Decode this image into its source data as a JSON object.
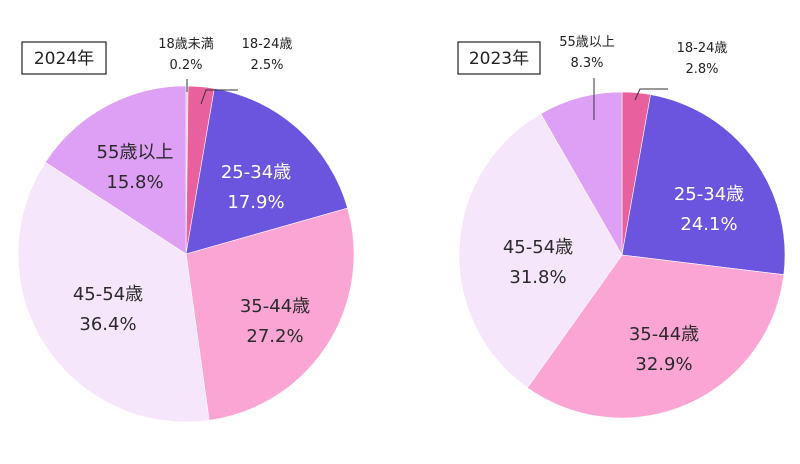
{
  "chart_data": [
    {
      "type": "pie",
      "title": "2024年",
      "slices": [
        {
          "label": "18歳未満",
          "value": 0.2,
          "display": "0.2%",
          "color": "#f0b8cf"
        },
        {
          "label": "18-24歳",
          "value": 2.5,
          "display": "2.5%",
          "color": "#e8609e"
        },
        {
          "label": "25-34歳",
          "value": 17.9,
          "display": "17.9%",
          "color": "#6b55de"
        },
        {
          "label": "35-44歳",
          "value": 27.2,
          "display": "27.2%",
          "color": "#fba5d4"
        },
        {
          "label": "45-54歳",
          "value": 36.4,
          "display": "36.4%",
          "color": "#f6e6fb"
        },
        {
          "label": "55歳以上",
          "value": 15.8,
          "display": "15.8%",
          "color": "#dea0f4"
        }
      ]
    },
    {
      "type": "pie",
      "title": "2023年",
      "slices": [
        {
          "label": "18-24歳",
          "value": 2.8,
          "display": "2.8%",
          "color": "#e8609e"
        },
        {
          "label": "25-34歳",
          "value": 24.1,
          "display": "24.1%",
          "color": "#6b55de"
        },
        {
          "label": "35-44歳",
          "value": 32.9,
          "display": "32.9%",
          "color": "#fba5d4"
        },
        {
          "label": "45-54歳",
          "value": 31.8,
          "display": "31.8%",
          "color": "#f6e6fb"
        },
        {
          "label": "55歳以上",
          "value": 8.3,
          "display": "8.3%",
          "color": "#dea0f4"
        }
      ]
    }
  ]
}
